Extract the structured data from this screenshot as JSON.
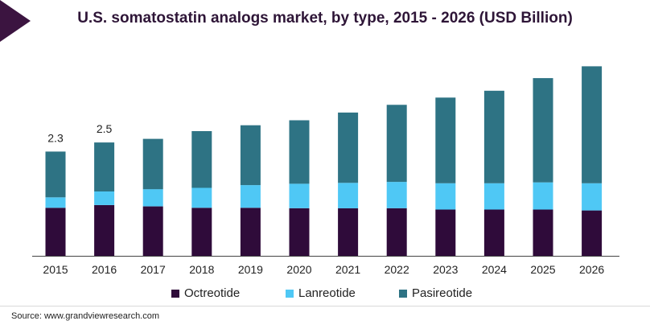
{
  "colors": {
    "Octreotide": "#2f0b3a",
    "Lanreotide": "#4fc8f5",
    "Pasireotide": "#2e7384",
    "title": "#2e1537",
    "corner": "#3b1440"
  },
  "chart_data": {
    "type": "bar",
    "stacked": true,
    "title": "U.S. somatostatin analogs market, by type, 2015 - 2026 (USD Billion)",
    "source": "Source: www.grandviewresearch.com",
    "categories": [
      "2015",
      "2016",
      "2017",
      "2018",
      "2019",
      "2020",
      "2021",
      "2022",
      "2023",
      "2024",
      "2025",
      "2026"
    ],
    "series": [
      {
        "name": "Octreotide",
        "values": [
          1.06,
          1.12,
          1.09,
          1.06,
          1.06,
          1.05,
          1.05,
          1.05,
          1.02,
          1.02,
          1.02,
          1.0
        ]
      },
      {
        "name": "Lanreotide",
        "values": [
          0.23,
          0.3,
          0.38,
          0.44,
          0.5,
          0.54,
          0.56,
          0.58,
          0.58,
          0.58,
          0.6,
          0.6
        ]
      },
      {
        "name": "Pasireotide",
        "values": [
          1.01,
          1.08,
          1.11,
          1.25,
          1.32,
          1.4,
          1.55,
          1.7,
          1.89,
          2.04,
          2.3,
          2.58
        ]
      }
    ],
    "data_labels": [
      {
        "category": "2015",
        "text": "2.3"
      },
      {
        "category": "2016",
        "text": "2.5"
      }
    ],
    "ylim": [
      0,
      4.4
    ],
    "grid": false,
    "legend_position": "bottom"
  }
}
